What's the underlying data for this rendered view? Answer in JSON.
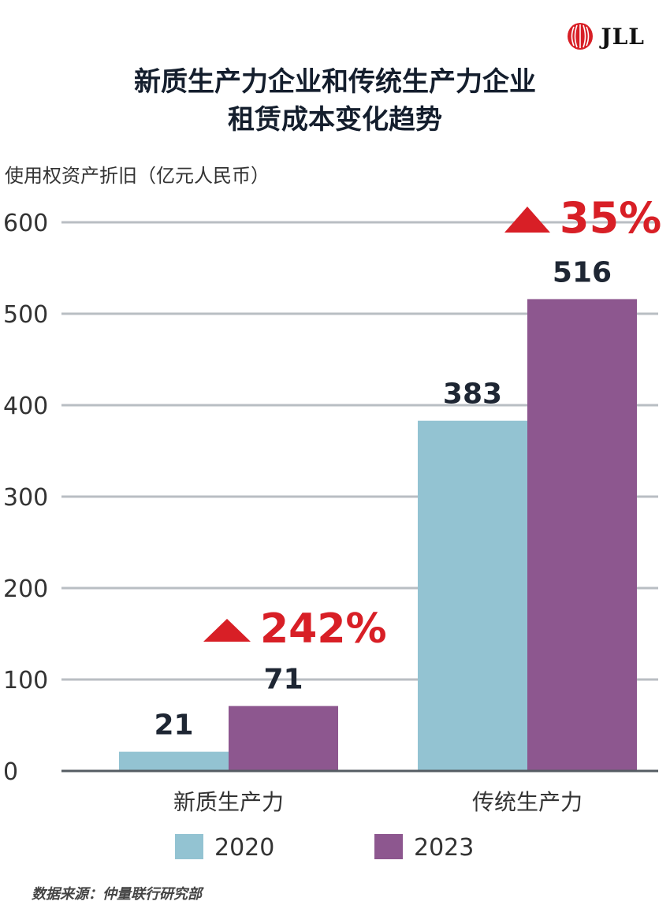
{
  "logo": {
    "text": "JLL"
  },
  "colors": {
    "series_2020": "#93c3d2",
    "series_2023": "#8d578f",
    "accent_red": "#d81f26",
    "grid": "#b9bec3"
  },
  "chart_data": {
    "type": "bar",
    "title": "新质生产力企业和传统生产力企业\n租赁成本变化趋势",
    "title_lines": [
      "新质生产力企业和传统生产力企业",
      "租赁成本变化趋势"
    ],
    "xlabel": "",
    "ylabel": "使用权资产折旧（亿元人民币）",
    "ylim": [
      0,
      600
    ],
    "yticks": [
      0,
      100,
      200,
      300,
      400,
      500,
      600
    ],
    "categories": [
      "新质生产力",
      "传统生产力"
    ],
    "series": [
      {
        "name": "2020",
        "values": [
          21,
          383
        ]
      },
      {
        "name": "2023",
        "values": [
          71,
          516
        ]
      }
    ],
    "annotations": [
      {
        "category": "新质生产力",
        "text": "242%"
      },
      {
        "category": "传统生产力",
        "text": "35%"
      }
    ],
    "grid": true,
    "legend": "bottom"
  },
  "source": "数据来源：仲量联行研究部"
}
